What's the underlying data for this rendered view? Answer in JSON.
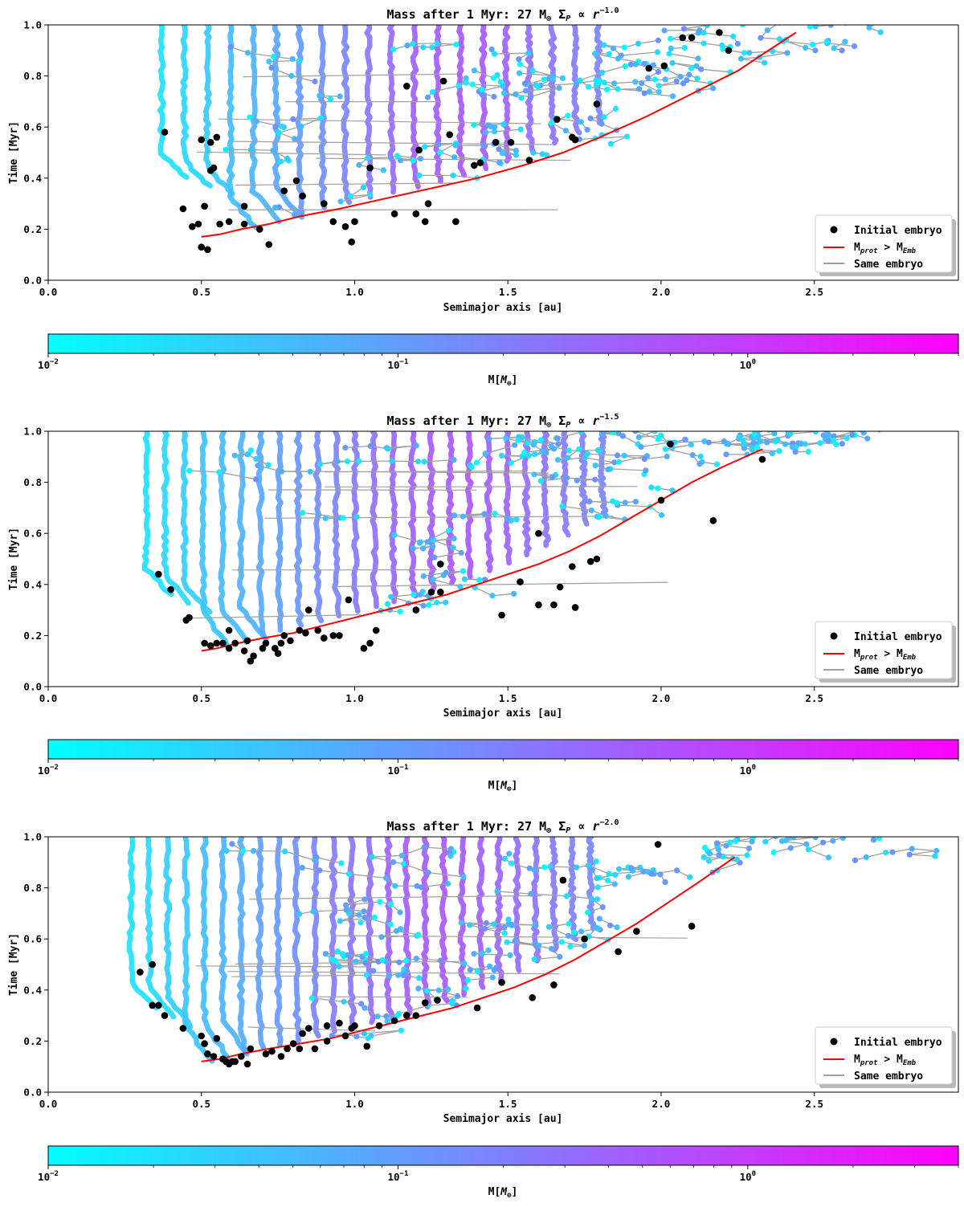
{
  "chart_data": [
    {
      "type": "scatter",
      "title": "Mass after 1 Myr: 27 M⊕ Σ_P ∝ r^-1.0",
      "title_main": "Mass after 1 Myr: 27 M",
      "title_sub": "⊕",
      "title_sigma": "Σ",
      "title_sigma_sub": "P",
      "title_prop": "∝ r",
      "title_exp": "−1.0",
      "xlabel": "Semimajor axis [au]",
      "ylabel": "Time [Myr]",
      "xlim": [
        0.0,
        2.97
      ],
      "ylim": [
        0.0,
        1.0
      ],
      "xticks": [
        "0.0",
        "0.5",
        "1.0",
        "1.5",
        "2.0",
        "2.5"
      ],
      "xtick_values": [
        0.0,
        0.5,
        1.0,
        1.5,
        2.0,
        2.5
      ],
      "yticks": [
        "0.0",
        "0.2",
        "0.4",
        "0.6",
        "0.8",
        "1.0"
      ],
      "ytick_values": [
        0.0,
        0.2,
        0.4,
        0.6,
        0.8,
        1.0
      ],
      "legend": {
        "position": "lower right",
        "entries": [
          "Initial embryo",
          "M_prot > M_Emb",
          "Same embryo"
        ],
        "label_embryo": "Initial embryo",
        "label_mprot": "M",
        "label_mprot_sub": "prot",
        "label_gt": " > M",
        "label_memb_sub": "Emb",
        "label_same": "Same embryo"
      },
      "series": [
        {
          "name": "M_prot > M_Emb",
          "color": "#ff0000",
          "x": [
            0.5,
            0.56,
            0.63,
            0.72,
            0.82,
            0.95,
            1.1,
            1.25,
            1.4,
            1.55,
            1.68,
            1.8,
            1.95,
            2.1,
            2.25,
            2.35,
            2.44
          ],
          "y": [
            0.17,
            0.18,
            0.2,
            0.22,
            0.25,
            0.28,
            0.32,
            0.36,
            0.4,
            0.45,
            0.5,
            0.56,
            0.64,
            0.73,
            0.82,
            0.9,
            0.97
          ]
        },
        {
          "name": "Initial embryo",
          "color": "#000000",
          "x": [
            0.38,
            0.44,
            0.47,
            0.49,
            0.5,
            0.5,
            0.51,
            0.52,
            0.53,
            0.53,
            0.54,
            0.55,
            0.56,
            0.59,
            0.64,
            0.64,
            0.69,
            0.72,
            0.77,
            0.81,
            0.83,
            0.9,
            0.93,
            0.97,
            0.99,
            1.0,
            1.05,
            1.13,
            1.17,
            1.2,
            1.21,
            1.23,
            1.24,
            1.29,
            1.31,
            1.33,
            1.39,
            1.41,
            1.46,
            1.51,
            1.57,
            1.66,
            1.71,
            1.72,
            1.79,
            1.96,
            2.01,
            2.07,
            2.1,
            2.19,
            2.22
          ],
          "y": [
            0.58,
            0.28,
            0.21,
            0.22,
            0.13,
            0.55,
            0.29,
            0.12,
            0.43,
            0.54,
            0.44,
            0.56,
            0.22,
            0.23,
            0.22,
            0.29,
            0.2,
            0.14,
            0.35,
            0.39,
            0.33,
            0.3,
            0.23,
            0.21,
            0.15,
            0.23,
            0.44,
            0.26,
            0.76,
            0.26,
            0.51,
            0.23,
            0.3,
            0.78,
            0.57,
            0.23,
            0.45,
            0.46,
            0.54,
            0.54,
            0.47,
            0.63,
            0.56,
            0.55,
            0.69,
            0.83,
            0.84,
            0.95,
            0.95,
            0.97,
            0.9
          ]
        }
      ],
      "colorbar": {
        "label": "M[M⊕]",
        "label_main": "M[",
        "label_sym": "M",
        "label_sub": "⊕",
        "label_end": "]",
        "scale": "log",
        "range": [
          0.01,
          4.0
        ],
        "ticks": [
          "10^-2",
          "10^-1",
          "10^0"
        ],
        "tick_values": [
          0.01,
          0.1,
          1.0
        ],
        "tick_base": "10",
        "tick_exps": [
          "−2",
          "−1",
          "0"
        ],
        "cmap": "cool",
        "colors": [
          "#00ffff",
          "#ff00ff"
        ]
      },
      "style": {
        "track_left_edge": 0.37,
        "track_spacing": 0.075,
        "dense_fraction": 0.48,
        "same_embryo_color": "#a0a0a0"
      }
    },
    {
      "type": "scatter",
      "title": "Mass after 1 Myr: 27 M⊕ Σ_P ∝ r^-1.5",
      "title_main": "Mass after 1 Myr: 27 M",
      "title_sub": "⊕",
      "title_sigma": "Σ",
      "title_sigma_sub": "P",
      "title_prop": "∝ r",
      "title_exp": "−1.5",
      "xlabel": "Semimajor axis [au]",
      "ylabel": "Time [Myr]",
      "xlim": [
        0.0,
        2.97
      ],
      "ylim": [
        0.0,
        1.0
      ],
      "xticks": [
        "0.0",
        "0.5",
        "1.0",
        "1.5",
        "2.0",
        "2.5"
      ],
      "xtick_values": [
        0.0,
        0.5,
        1.0,
        1.5,
        2.0,
        2.5
      ],
      "yticks": [
        "0.0",
        "0.2",
        "0.4",
        "0.6",
        "0.8",
        "1.0"
      ],
      "ytick_values": [
        0.0,
        0.2,
        0.4,
        0.6,
        0.8,
        1.0
      ],
      "legend": {
        "position": "lower right",
        "entries": [
          "Initial embryo",
          "M_prot > M_Emb",
          "Same embryo"
        ],
        "label_embryo": "Initial embryo",
        "label_mprot": "M",
        "label_mprot_sub": "prot",
        "label_gt": " > M",
        "label_memb_sub": "Emb",
        "label_same": "Same embryo"
      },
      "series": [
        {
          "name": "M_prot > M_Emb",
          "color": "#ff0000",
          "x": [
            0.5,
            0.55,
            0.62,
            0.7,
            0.8,
            0.9,
            1.0,
            1.1,
            1.2,
            1.3,
            1.4,
            1.5,
            1.6,
            1.7,
            1.8,
            1.9,
            2.0,
            2.1,
            2.2,
            2.33
          ],
          "y": [
            0.14,
            0.15,
            0.17,
            0.19,
            0.21,
            0.24,
            0.27,
            0.3,
            0.33,
            0.36,
            0.4,
            0.44,
            0.48,
            0.53,
            0.59,
            0.66,
            0.73,
            0.8,
            0.86,
            0.93
          ]
        },
        {
          "name": "Initial embryo",
          "color": "#000000",
          "x": [
            0.36,
            0.4,
            0.45,
            0.46,
            0.51,
            0.53,
            0.55,
            0.57,
            0.59,
            0.59,
            0.61,
            0.64,
            0.65,
            0.66,
            0.67,
            0.7,
            0.71,
            0.74,
            0.75,
            0.76,
            0.77,
            0.79,
            0.82,
            0.84,
            0.85,
            0.88,
            0.9,
            0.93,
            0.95,
            0.98,
            1.03,
            1.05,
            1.07,
            1.2,
            1.25,
            1.28,
            1.28,
            1.48,
            1.54,
            1.6,
            1.6,
            1.65,
            1.67,
            1.71,
            1.72,
            1.77,
            1.79,
            2.0,
            2.03,
            2.17,
            2.33
          ],
          "y": [
            0.44,
            0.38,
            0.26,
            0.27,
            0.17,
            0.16,
            0.17,
            0.17,
            0.15,
            0.22,
            0.17,
            0.14,
            0.18,
            0.1,
            0.12,
            0.15,
            0.17,
            0.15,
            0.13,
            0.17,
            0.2,
            0.18,
            0.22,
            0.21,
            0.3,
            0.22,
            0.19,
            0.2,
            0.2,
            0.34,
            0.15,
            0.17,
            0.22,
            0.3,
            0.37,
            0.37,
            0.48,
            0.28,
            0.41,
            0.32,
            0.6,
            0.32,
            0.39,
            0.47,
            0.31,
            0.49,
            0.5,
            0.73,
            0.95,
            0.65,
            0.89
          ]
        }
      ],
      "colorbar": {
        "label": "M[M⊕]",
        "label_main": "M[",
        "label_sym": "M",
        "label_sub": "⊕",
        "label_end": "]",
        "scale": "log",
        "range": [
          0.01,
          4.0
        ],
        "ticks": [
          "10^-2",
          "10^-1",
          "10^0"
        ],
        "tick_values": [
          0.01,
          0.1,
          1.0
        ],
        "tick_base": "10",
        "tick_exps": [
          "−2",
          "−1",
          "0"
        ],
        "cmap": "cool",
        "colors": [
          "#00ffff",
          "#ff00ff"
        ]
      },
      "style": {
        "track_left_edge": 0.32,
        "track_spacing": 0.062,
        "dense_fraction": 0.42,
        "same_embryo_color": "#a0a0a0"
      }
    },
    {
      "type": "scatter",
      "title": "Mass after 1 Myr: 27 M⊕ Σ_P ∝ r^-2.0",
      "title_main": "Mass after 1 Myr: 27 M",
      "title_sub": "⊕",
      "title_sigma": "Σ",
      "title_sigma_sub": "P",
      "title_prop": "∝ r",
      "title_exp": "−2.0",
      "xlabel": "Semimajor axis [au]",
      "ylabel": "Time [Myr]",
      "xlim": [
        0.0,
        2.97
      ],
      "ylim": [
        0.0,
        1.0
      ],
      "xticks": [
        "0.0",
        "0.5",
        "1.0",
        "1.5",
        "2.0",
        "2.5"
      ],
      "xtick_values": [
        0.0,
        0.5,
        1.0,
        1.5,
        2.0,
        2.5
      ],
      "yticks": [
        "0.0",
        "0.2",
        "0.4",
        "0.6",
        "0.8",
        "1.0"
      ],
      "ytick_values": [
        0.0,
        0.2,
        0.4,
        0.6,
        0.8,
        1.0
      ],
      "legend": {
        "position": "lower right",
        "entries": [
          "Initial embryo",
          "M_prot > M_Emb",
          "Same embryo"
        ],
        "label_embryo": "Initial embryo",
        "label_mprot": "M",
        "label_mprot_sub": "prot",
        "label_gt": " > M",
        "label_memb_sub": "Emb",
        "label_same": "Same embryo"
      },
      "series": [
        {
          "name": "M_prot > M_Emb",
          "color": "#ff0000",
          "x": [
            0.5,
            0.56,
            0.63,
            0.72,
            0.82,
            0.92,
            1.02,
            1.12,
            1.22,
            1.32,
            1.42,
            1.52,
            1.62,
            1.72,
            1.82,
            1.92,
            2.02,
            2.12,
            2.24
          ],
          "y": [
            0.12,
            0.13,
            0.15,
            0.17,
            0.19,
            0.21,
            0.24,
            0.27,
            0.3,
            0.33,
            0.37,
            0.41,
            0.46,
            0.52,
            0.59,
            0.66,
            0.74,
            0.82,
            0.92
          ]
        },
        {
          "name": "Initial embryo",
          "color": "#000000",
          "x": [
            0.3,
            0.34,
            0.34,
            0.36,
            0.38,
            0.44,
            0.5,
            0.51,
            0.52,
            0.54,
            0.55,
            0.57,
            0.58,
            0.59,
            0.6,
            0.61,
            0.63,
            0.65,
            0.66,
            0.71,
            0.73,
            0.76,
            0.78,
            0.8,
            0.82,
            0.83,
            0.85,
            0.87,
            0.91,
            0.91,
            0.95,
            0.97,
            0.99,
            1.0,
            1.04,
            1.08,
            1.13,
            1.17,
            1.2,
            1.23,
            1.27,
            1.4,
            1.48,
            1.58,
            1.65,
            1.68,
            1.75,
            1.86,
            1.92,
            1.99,
            2.1
          ],
          "y": [
            0.47,
            0.5,
            0.34,
            0.34,
            0.3,
            0.25,
            0.22,
            0.19,
            0.15,
            0.14,
            0.21,
            0.13,
            0.12,
            0.11,
            0.12,
            0.12,
            0.14,
            0.11,
            0.17,
            0.15,
            0.16,
            0.14,
            0.17,
            0.19,
            0.17,
            0.23,
            0.25,
            0.17,
            0.26,
            0.2,
            0.27,
            0.22,
            0.25,
            0.26,
            0.18,
            0.26,
            0.28,
            0.3,
            0.3,
            0.35,
            0.36,
            0.33,
            0.43,
            0.37,
            0.42,
            0.83,
            0.6,
            0.55,
            0.63,
            0.97,
            0.65
          ]
        }
      ],
      "colorbar": {
        "label": "M[M⊕]",
        "label_main": "M[",
        "label_sym": "M",
        "label_sub": "⊕",
        "label_end": "]",
        "scale": "log",
        "range": [
          0.01,
          4.0
        ],
        "ticks": [
          "10^-2",
          "10^-1",
          "10^0"
        ],
        "tick_values": [
          0.01,
          0.1,
          1.0
        ],
        "tick_base": "10",
        "tick_exps": [
          "−2",
          "−1",
          "0"
        ],
        "cmap": "cool",
        "colors": [
          "#00ffff",
          "#ff00ff"
        ]
      },
      "style": {
        "track_left_edge": 0.27,
        "track_spacing": 0.06,
        "dense_fraction": 0.4,
        "same_embryo_color": "#a0a0a0"
      }
    }
  ]
}
